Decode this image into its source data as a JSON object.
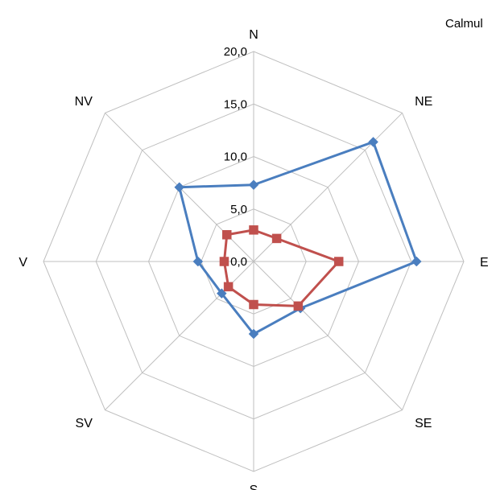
{
  "chart_data": {
    "type": "radar",
    "title": "",
    "corner_text": "Calmul",
    "categories": [
      "N",
      "NE",
      "E",
      "SE",
      "S",
      "SV",
      "V",
      "NV"
    ],
    "rlim": [
      0,
      20
    ],
    "ticks": [
      "0,0",
      "5,0",
      "10,0",
      "15,0",
      "20,0"
    ],
    "tick_values": [
      0,
      5,
      10,
      15,
      20
    ],
    "grid": true,
    "legend": "none",
    "series": [
      {
        "color": "#4a7ebf",
        "marker": "diamond",
        "values": [
          7.3,
          16.1,
          15.5,
          6.3,
          6.9,
          4.3,
          5.3,
          10.0
        ]
      },
      {
        "color": "#c0504d",
        "marker": "square",
        "values": [
          3.0,
          3.1,
          8.1,
          6.0,
          4.1,
          3.4,
          2.8,
          3.6
        ]
      }
    ]
  }
}
